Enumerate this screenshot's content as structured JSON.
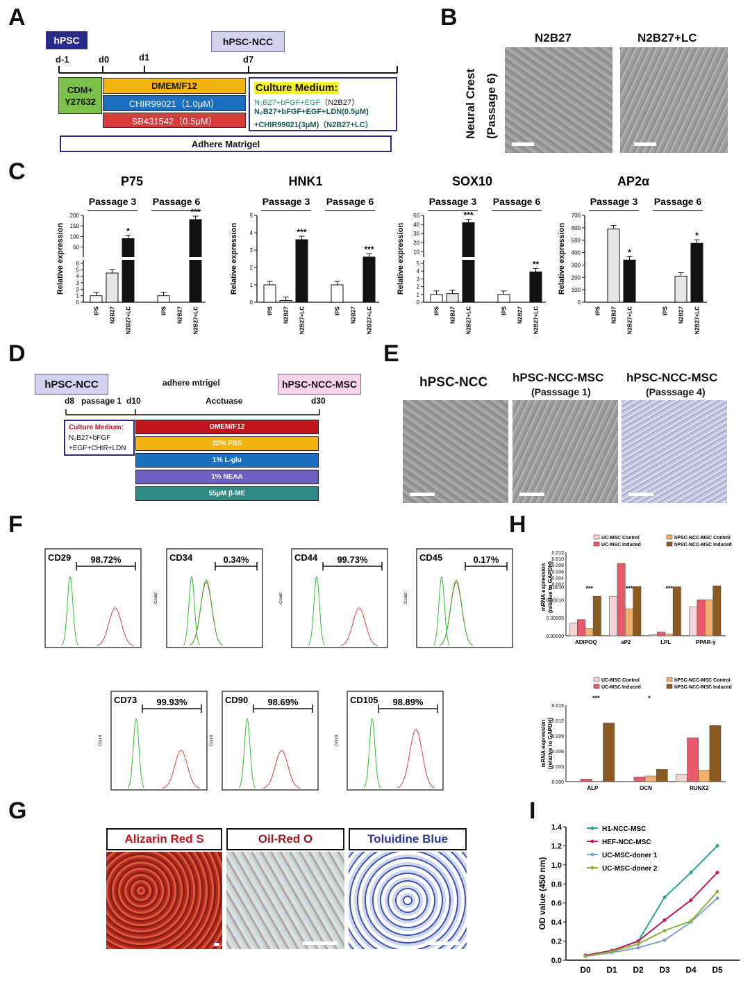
{
  "panels": {
    "A": "A",
    "B": "B",
    "C": "C",
    "D": "D",
    "E": "E",
    "F": "F",
    "G": "G",
    "H": "H",
    "I": "I"
  },
  "panelA": {
    "hpsc": "hPSC",
    "hpsc_ncc": "hPSC-NCC",
    "days": [
      "d-1",
      "d0",
      "d1",
      "d7"
    ],
    "cdm": "CDM+\nY27632",
    "dmem": "DMEM/F12",
    "chir": "CHIR99021（1.0μM）",
    "sb": "SB431542（0.5μM）",
    "culture_title": "Culture Medium:",
    "line1": "N₂B27+bFGF+EGF",
    "line1_tag": "（N2B27）",
    "line2": "N₂B27+bFGF+EGF+LDN(0.5μM)",
    "line3": "+CHIR99021(3μM)",
    "line3_tag": "（N2B27+LC）",
    "adhere": "Adhere Matrigel"
  },
  "panelB": {
    "col1": "N2B27",
    "col2": "N2B27+LC",
    "ylabel1": "Neural Crest",
    "ylabel2": "(Passage 6)"
  },
  "panelD": {
    "left": "hPSC-NCC",
    "right": "hPSC-NCC-MSC",
    "top_mid": "adhere mtrigel",
    "act": "Acctuase",
    "d8": "d8",
    "p1": "passage 1",
    "d10": "d10",
    "d30": "d30",
    "cm_title": "Culture Medium:",
    "cm1": "N₂B27+bFGF",
    "cm2": "+EGF+CHIR+LDN",
    "bars": [
      {
        "label": "DMEM/F12",
        "color": "#c0151d"
      },
      {
        "label": "20% FBS",
        "color": "#f5b30f"
      },
      {
        "label": "1% L-glu",
        "color": "#1a6fc1"
      },
      {
        "label": "1% NEAA",
        "color": "#6b5fc4"
      },
      {
        "label": "55μM  β-ME",
        "color": "#2f8a86"
      }
    ]
  },
  "panelE": {
    "t1": "hPSC-NCC",
    "t2": "hPSC-NCC-MSC",
    "t2s": "(Passsage 1)",
    "t3": "hPSC-NCC-MSC",
    "t3s": "(Passsage 4)"
  },
  "panelG": {
    "s1": "Alizarin Red S",
    "s2": "Oil-Red O",
    "s3": "Toluidine Blue"
  },
  "chart_data": [
    {
      "type": "bar",
      "title": "P75",
      "ylabel": "Relative expression",
      "groups": [
        "Passage 3",
        "Passage 6"
      ],
      "categories": [
        "IPS",
        "N2B27",
        "N2B27+LC",
        "IPS",
        "N2B27",
        "N2B27+LC"
      ],
      "values": [
        1,
        4.5,
        90,
        1,
        0,
        180
      ],
      "sig": [
        "",
        "",
        "*",
        "",
        "",
        "***"
      ],
      "yticks_low": [
        "0",
        "1",
        "2",
        "3",
        "4",
        "5",
        "6"
      ],
      "yticks_high": [
        "50",
        "100",
        "150",
        "200"
      ]
    },
    {
      "type": "bar",
      "title": "HNK1",
      "ylabel": "Relative expression",
      "groups": [
        "Passage 3",
        "Passage 6"
      ],
      "categories": [
        "IPS",
        "N2B27",
        "N2B27+LC",
        "IPS",
        "N2B27",
        "N2B27+LC"
      ],
      "values": [
        1,
        0.1,
        3.6,
        1,
        0,
        2.6
      ],
      "sig": [
        "",
        "",
        "***",
        "",
        "",
        "***"
      ],
      "ylim": [
        0,
        5
      ],
      "yticks": [
        "0",
        "1",
        "2",
        "3",
        "4",
        "5"
      ]
    },
    {
      "type": "bar",
      "title": "SOX10",
      "ylabel": "Relative expression",
      "groups": [
        "Passage 3",
        "Passage 6"
      ],
      "categories": [
        "IPS",
        "N2B27",
        "N2B27+LC",
        "IPS",
        "N2B27",
        "N2B27+LC"
      ],
      "values": [
        1,
        1.1,
        42,
        1,
        0,
        3.9
      ],
      "sig": [
        "",
        "",
        "***",
        "",
        "",
        "**"
      ],
      "yticks_low": [
        "0",
        "1",
        "2",
        "3",
        "4",
        "5"
      ],
      "yticks_high": [
        "10",
        "20",
        "30",
        "40",
        "50"
      ]
    },
    {
      "type": "bar",
      "title": "AP2α",
      "ylabel": "Relative expression",
      "groups": [
        "Passage 3",
        "Passage 6"
      ],
      "categories": [
        "IPS",
        "N2B27",
        "N2B27+LC",
        "IPS",
        "N2B27",
        "N2B27+LC"
      ],
      "values": [
        0,
        590,
        340,
        0,
        210,
        475
      ],
      "sig": [
        "",
        "",
        "*",
        "",
        "",
        "*"
      ],
      "ylim": [
        0,
        700
      ],
      "yticks": [
        "0",
        "100",
        "200",
        "300",
        "400",
        "500",
        "600",
        "700"
      ]
    },
    {
      "type": "histogram",
      "markers": [
        {
          "name": "CD29",
          "pct": "98.72%"
        },
        {
          "name": "CD34",
          "pct": "0.34%"
        },
        {
          "name": "CD44",
          "pct": "99.73%"
        },
        {
          "name": "CD45",
          "pct": "0.17%"
        },
        {
          "name": "CD73",
          "pct": "99.93%"
        },
        {
          "name": "CD90",
          "pct": "98.69%"
        },
        {
          "name": "CD105",
          "pct": "98.89%"
        }
      ],
      "ylabel": "Count"
    },
    {
      "type": "bar",
      "ylabel": "mRNA expression\n(relative to GAPDH)",
      "legend": [
        "UC-MSC Control",
        "UC-MSC Induced",
        "hPSC-NCC-MSC Control",
        "hPSC-NCC-MSC Induced"
      ],
      "categories": [
        "ADIPOQ",
        "aP2",
        "LPL",
        "PPAR-γ"
      ],
      "series": [
        {
          "name": "UC-MSC Control",
          "values": [
            3.5e-05,
            0.00011,
            3e-06,
            8e-05
          ]
        },
        {
          "name": "UC-MSC Induced",
          "values": [
            4.5e-05,
            0.0085,
            1e-05,
            0.0001
          ]
        },
        {
          "name": "hPSC-NCC-MSC Control",
          "values": [
            2e-05,
            7.5e-05,
            5e-06,
            0.0001
          ]
        },
        {
          "name": "hPSC-NCC-MSC Induced",
          "values": [
            0.00011,
            0.0012,
            0.0011,
            0.0014
          ]
        }
      ],
      "sig": [
        "***",
        "***",
        "***",
        ""
      ]
    },
    {
      "type": "bar",
      "ylabel": "mRNA expression\n(relative to GAPDH)",
      "legend": [
        "UC-MSC Control",
        "UC-MSC Induced",
        "hPSC-NCC-MSC Control",
        "hPSC-NCC-MSC Induced"
      ],
      "categories": [
        "ALP",
        "OCN",
        "RUNX2"
      ],
      "series": [
        {
          "name": "UC-MSC Control",
          "values": [
            0.0001,
            0.0001,
            0.0014
          ]
        },
        {
          "name": "UC-MSC Induced",
          "values": [
            0.0005,
            0.0009,
            0.0086
          ]
        },
        {
          "name": "hPSC-NCC-MSC Control",
          "values": [
            0.0001,
            0.0011,
            0.0022
          ]
        },
        {
          "name": "hPSC-NCC-MSC Induced",
          "values": [
            0.0115,
            0.0024,
            0.011
          ]
        }
      ],
      "sig": [
        "***",
        "*",
        ""
      ],
      "ylim": [
        0,
        0.015
      ],
      "yticks": [
        "0.000",
        "0.003",
        "0.006",
        "0.009",
        "0.012",
        "0.015"
      ]
    },
    {
      "type": "line",
      "ylabel": "OD value (450 nm)",
      "x": [
        "D0",
        "D1",
        "D2",
        "D3",
        "D4",
        "D5"
      ],
      "ylim": [
        0,
        1.4
      ],
      "yticks": [
        "0.0",
        "0.2",
        "0.4",
        "0.6",
        "0.8",
        "1.0",
        "1.2",
        "1.4"
      ],
      "series": [
        {
          "name": "H1-NCC-MSC",
          "color": "#2aa394",
          "values": [
            0.05,
            0.1,
            0.2,
            0.66,
            0.92,
            1.2
          ]
        },
        {
          "name": "HEF-NCC-MSC",
          "color": "#c2185b",
          "values": [
            0.05,
            0.1,
            0.2,
            0.42,
            0.63,
            0.92
          ]
        },
        {
          "name": "UC-MSC-doner 1",
          "color": "#7f9fd1",
          "values": [
            0.04,
            0.08,
            0.13,
            0.21,
            0.4,
            0.65
          ]
        },
        {
          "name": "UC-MSC-doner 2",
          "color": "#8ab33b",
          "values": [
            0.04,
            0.09,
            0.17,
            0.31,
            0.41,
            0.72
          ]
        }
      ]
    }
  ]
}
